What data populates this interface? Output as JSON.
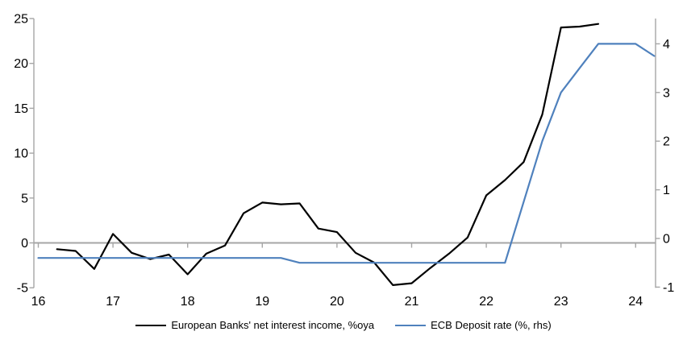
{
  "chart_data": {
    "type": "line",
    "title": "",
    "grid": "zero-line-only",
    "legend_position": "bottom-center",
    "x_axis": {
      "tick_values": [
        16,
        17,
        18,
        19,
        20,
        21,
        22,
        23,
        24
      ],
      "tick_labels": [
        "16",
        "17",
        "18",
        "19",
        "20",
        "21",
        "22",
        "23",
        "24"
      ],
      "range": [
        16,
        24.3
      ]
    },
    "left_axis": {
      "tick_values": [
        25,
        20,
        15,
        10,
        5,
        0,
        -5
      ],
      "tick_labels": [
        "25",
        "20",
        "15",
        "10",
        "5",
        "0",
        "-5"
      ],
      "range": [
        -5,
        25
      ]
    },
    "right_axis": {
      "tick_values": [
        4,
        3,
        2,
        1,
        0,
        -1
      ],
      "tick_labels": [
        "4",
        "3",
        "2",
        "1",
        "0",
        "-1"
      ],
      "range": [
        -1,
        4.5
      ]
    },
    "series": [
      {
        "name": "European Banks' net interest income, %oya",
        "axis": "left",
        "color": "#000000",
        "x": [
          16.25,
          16.5,
          16.75,
          17.0,
          17.25,
          17.5,
          17.75,
          18.0,
          18.25,
          18.5,
          18.75,
          19.0,
          19.25,
          19.5,
          19.75,
          20.0,
          20.25,
          20.5,
          20.75,
          21.0,
          21.25,
          21.5,
          21.75,
          22.0,
          22.25,
          22.5,
          22.75,
          23.0,
          23.25,
          23.5
        ],
        "values": [
          -0.7,
          -0.9,
          -2.9,
          1.0,
          -1.1,
          -1.8,
          -1.3,
          -3.5,
          -1.2,
          -0.3,
          3.3,
          4.5,
          4.3,
          4.4,
          1.6,
          1.2,
          -1.1,
          -2.2,
          -4.7,
          -4.5,
          -2.8,
          -1.2,
          0.6,
          5.3,
          7.0,
          9.0,
          14.3,
          24.0,
          24.1,
          24.4
        ]
      },
      {
        "name": "ECB Deposit rate (%, rhs)",
        "axis": "right",
        "color": "#4f81bd",
        "x": [
          16.0,
          16.25,
          16.5,
          16.75,
          17.0,
          17.25,
          17.5,
          17.75,
          18.0,
          18.25,
          18.5,
          18.75,
          19.0,
          19.25,
          19.5,
          19.75,
          20.0,
          20.25,
          20.5,
          20.75,
          21.0,
          21.25,
          21.5,
          21.75,
          22.0,
          22.25,
          22.5,
          22.75,
          23.0,
          23.25,
          23.5,
          23.75,
          24.0,
          24.25
        ],
        "values": [
          -0.4,
          -0.4,
          -0.4,
          -0.4,
          -0.4,
          -0.4,
          -0.4,
          -0.4,
          -0.4,
          -0.4,
          -0.4,
          -0.4,
          -0.4,
          -0.4,
          -0.5,
          -0.5,
          -0.5,
          -0.5,
          -0.5,
          -0.5,
          -0.5,
          -0.5,
          -0.5,
          -0.5,
          -0.5,
          -0.5,
          0.75,
          2.0,
          3.0,
          3.5,
          4.0,
          4.0,
          4.0,
          3.75
        ]
      }
    ],
    "colors": {
      "axis_gray": "#a6a6a6",
      "text": "#000000",
      "background": "#ffffff"
    }
  }
}
